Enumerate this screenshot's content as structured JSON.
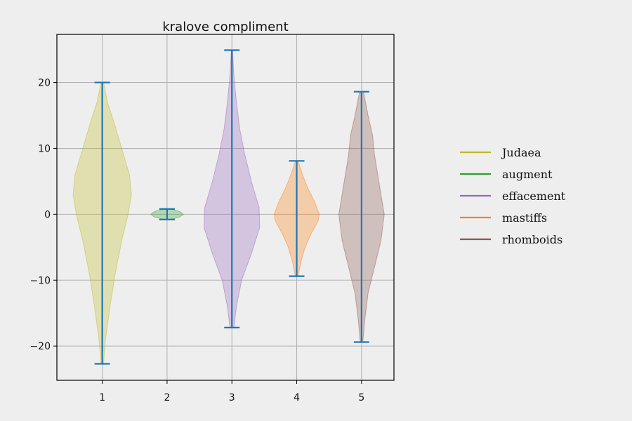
{
  "chart_data": {
    "type": "violin",
    "title": "kralove compliment",
    "xlabel": "",
    "ylabel": "",
    "x_ticks": [
      "1",
      "2",
      "3",
      "4",
      "5"
    ],
    "y_ticks": [
      -20,
      -10,
      0,
      10,
      20
    ],
    "y_tick_labels": [
      "−20",
      "−10",
      "0",
      "10",
      "20"
    ],
    "xlim": [
      0.3,
      5.5
    ],
    "ylim": [
      -25.2,
      27.3
    ],
    "grid": true,
    "legend_position": "right",
    "whisker_color": "#1f77b4",
    "series": [
      {
        "name": "Judaea",
        "position": 1,
        "color": "#bcbd22",
        "min": -22.7,
        "max": 20.0,
        "profile": [
          [
            -22.7,
            0.02
          ],
          [
            -19,
            0.05
          ],
          [
            -14,
            0.12
          ],
          [
            -9,
            0.2
          ],
          [
            -4,
            0.3
          ],
          [
            0,
            0.4
          ],
          [
            3,
            0.45
          ],
          [
            6,
            0.42
          ],
          [
            10,
            0.3
          ],
          [
            14,
            0.18
          ],
          [
            17,
            0.08
          ],
          [
            20,
            0.02
          ]
        ]
      },
      {
        "name": "augment",
        "position": 2,
        "color": "#2ca02c",
        "min": -0.8,
        "max": 0.8,
        "profile": [
          [
            -0.8,
            0.05
          ],
          [
            -0.4,
            0.2
          ],
          [
            0,
            0.25
          ],
          [
            0.4,
            0.2
          ],
          [
            0.8,
            0.05
          ]
        ]
      },
      {
        "name": "effacement",
        "position": 3,
        "color": "#9467bd",
        "min": -17.2,
        "max": 24.9,
        "profile": [
          [
            -17.2,
            0.03
          ],
          [
            -14,
            0.07
          ],
          [
            -10,
            0.15
          ],
          [
            -6,
            0.3
          ],
          [
            -2,
            0.43
          ],
          [
            1,
            0.42
          ],
          [
            5,
            0.3
          ],
          [
            9,
            0.2
          ],
          [
            13,
            0.12
          ],
          [
            17,
            0.07
          ],
          [
            21,
            0.03
          ],
          [
            24.9,
            0.01
          ]
        ]
      },
      {
        "name": "mastiffs",
        "position": 4,
        "color": "#ff7f0e",
        "min": -9.4,
        "max": 8.1,
        "profile": [
          [
            -9.4,
            0.02
          ],
          [
            -7,
            0.07
          ],
          [
            -5,
            0.13
          ],
          [
            -3,
            0.22
          ],
          [
            -1,
            0.33
          ],
          [
            0,
            0.35
          ],
          [
            2,
            0.27
          ],
          [
            4,
            0.17
          ],
          [
            6,
            0.09
          ],
          [
            8.1,
            0.02
          ]
        ]
      },
      {
        "name": "rhomboids",
        "position": 5,
        "color": "#8c564b",
        "min": -19.4,
        "max": 18.6,
        "profile": [
          [
            -19.4,
            0.02
          ],
          [
            -16,
            0.05
          ],
          [
            -12,
            0.1
          ],
          [
            -8,
            0.2
          ],
          [
            -4,
            0.3
          ],
          [
            0,
            0.35
          ],
          [
            3,
            0.3
          ],
          [
            6,
            0.25
          ],
          [
            9,
            0.2
          ],
          [
            12,
            0.17
          ],
          [
            15,
            0.1
          ],
          [
            18.6,
            0.03
          ]
        ]
      }
    ]
  }
}
